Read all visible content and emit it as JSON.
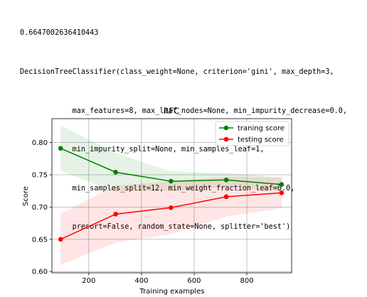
{
  "output": {
    "lines": [
      "0.6647002636410443",
      "DecisionTreeClassifier(class_weight=None, criterion='gini', max_depth=3,",
      "            max_features=8, max_leaf_nodes=None, min_impurity_decrease=0.0,",
      "            min_impurity_split=None, min_samples_leaf=1,",
      "            min_samples_split=12, min_weight_fraction_leaf=0.0,",
      "            presort=False, random_state=None, splitter='best')"
    ]
  },
  "chart_data": {
    "type": "line",
    "title": "RFC",
    "xlabel": "Training examples",
    "ylabel": "Score",
    "xlim": [
      60,
      970
    ],
    "ylim": [
      0.598,
      0.837
    ],
    "xticks": [
      200,
      400,
      600,
      800
    ],
    "yticks": [
      0.6,
      0.65,
      0.7,
      0.75,
      0.8
    ],
    "grid": true,
    "legend_position": "top-right",
    "x": [
      93,
      302,
      512,
      722,
      932
    ],
    "series": [
      {
        "name": "traning score",
        "color": "#008000",
        "values": [
          0.791,
          0.754,
          0.74,
          0.742,
          0.735
        ],
        "band_lower": [
          0.756,
          0.724,
          0.725,
          0.731,
          0.724
        ],
        "band_upper": [
          0.826,
          0.784,
          0.755,
          0.753,
          0.746
        ]
      },
      {
        "name": "testing score",
        "color": "#ff0000",
        "values": [
          0.65,
          0.689,
          0.699,
          0.716,
          0.722
        ],
        "band_lower": [
          0.61,
          0.645,
          0.658,
          0.685,
          0.698
        ],
        "band_upper": [
          0.69,
          0.733,
          0.74,
          0.747,
          0.746
        ]
      }
    ]
  }
}
